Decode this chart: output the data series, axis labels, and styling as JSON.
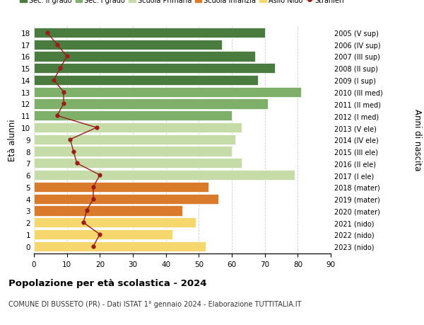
{
  "ages": [
    18,
    17,
    16,
    15,
    14,
    13,
    12,
    11,
    10,
    9,
    8,
    7,
    6,
    5,
    4,
    3,
    2,
    1,
    0
  ],
  "right_labels": [
    "2005 (V sup)",
    "2006 (IV sup)",
    "2007 (III sup)",
    "2008 (II sup)",
    "2009 (I sup)",
    "2010 (III med)",
    "2011 (II med)",
    "2012 (I med)",
    "2013 (V ele)",
    "2014 (IV ele)",
    "2015 (III ele)",
    "2016 (II ele)",
    "2017 (I ele)",
    "2018 (mater)",
    "2019 (mater)",
    "2020 (mater)",
    "2021 (nido)",
    "2022 (nido)",
    "2023 (nido)"
  ],
  "bar_values": [
    70,
    57,
    67,
    73,
    68,
    81,
    71,
    60,
    63,
    61,
    60,
    63,
    79,
    53,
    56,
    45,
    49,
    42,
    52
  ],
  "bar_colors": [
    "#4a7c40",
    "#4a7c40",
    "#4a7c40",
    "#4a7c40",
    "#4a7c40",
    "#7fb069",
    "#7fb069",
    "#7fb069",
    "#c5dba8",
    "#c5dba8",
    "#c5dba8",
    "#c5dba8",
    "#c5dba8",
    "#d97b2b",
    "#d97b2b",
    "#d97b2b",
    "#f5d76e",
    "#f5d76e",
    "#f5d76e"
  ],
  "stranieri_values": [
    4,
    7,
    10,
    8,
    6,
    9,
    9,
    7,
    19,
    11,
    12,
    13,
    20,
    18,
    18,
    16,
    15,
    20,
    18
  ],
  "legend_items": [
    {
      "label": "Sec. II grado",
      "color": "#4a7c40"
    },
    {
      "label": "Sec. I grado",
      "color": "#7fb069"
    },
    {
      "label": "Scuola Primaria",
      "color": "#c5dba8"
    },
    {
      "label": "Scuola Infanzia",
      "color": "#d97b2b"
    },
    {
      "label": "Asilo Nido",
      "color": "#f5d76e"
    },
    {
      "label": "Stranieri",
      "color": "#9b1c1c"
    }
  ],
  "ylabel_left": "Età alunni",
  "ylabel_right": "Anni di nascita",
  "title": "Popolazione per età scolastica - 2024",
  "subtitle": "COMUNE DI BUSSETO (PR) - Dati ISTAT 1° gennaio 2024 - Elaborazione TUTTITALIA.IT",
  "xlim": [
    0,
    90
  ],
  "xticks": [
    0,
    10,
    20,
    30,
    40,
    50,
    60,
    70,
    80,
    90
  ],
  "bg_color": "#ffffff",
  "bar_edge_color": "#ffffff",
  "stranieri_line_color": "#9b1c1c",
  "stranieri_marker_color": "#9b1c1c"
}
